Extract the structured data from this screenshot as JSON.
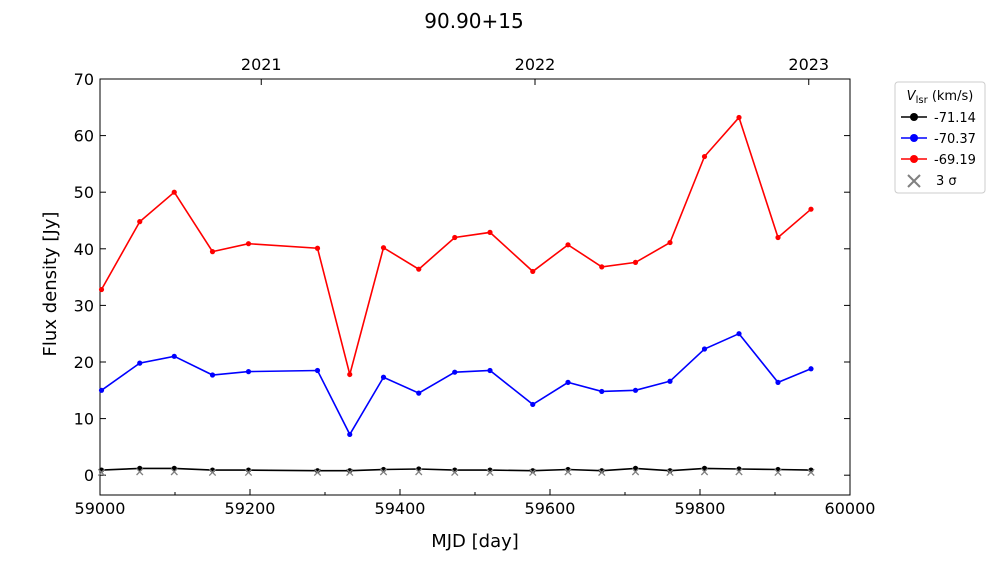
{
  "chart_data": {
    "type": "line",
    "title": "90.90+15",
    "xlabel": "MJD [day]",
    "ylabel": "Flux density [Jy]",
    "xlim": [
      59000,
      60000
    ],
    "ylim": [
      -3.5,
      70
    ],
    "xticks": [
      59000,
      59200,
      59400,
      59600,
      59800,
      60000
    ],
    "yticks": [
      0,
      10,
      20,
      30,
      40,
      50,
      60,
      70
    ],
    "top_axis": {
      "labels": [
        "2021",
        "2022",
        "2023"
      ],
      "positions_mjd": [
        59215,
        59580,
        59945
      ]
    },
    "grid": false,
    "legend": {
      "placement": "outside-top-right",
      "title_main": "V",
      "title_sub": "lsr",
      "title_unit": " (km/s)",
      "sigma_label": "3 σ"
    },
    "x": [
      59002,
      59053,
      59099,
      59150,
      59198,
      59290,
      59333,
      59378,
      59425,
      59473,
      59520,
      59577,
      59624,
      59669,
      59714,
      59760,
      59806,
      59852,
      59904,
      59948
    ],
    "series": [
      {
        "name": "-71.14",
        "color": "#000000",
        "values": [
          0.9,
          1.2,
          1.2,
          0.9,
          0.9,
          0.8,
          0.8,
          1.0,
          1.1,
          0.9,
          0.9,
          0.8,
          1.0,
          0.8,
          1.2,
          0.8,
          1.2,
          1.1,
          1.0,
          0.9
        ]
      },
      {
        "name": "-70.37",
        "color": "#0000ff",
        "values": [
          15.0,
          19.8,
          21.0,
          17.7,
          18.3,
          18.5,
          7.2,
          17.3,
          14.5,
          18.2,
          18.5,
          12.5,
          16.4,
          14.8,
          15.0,
          16.6,
          22.3,
          25.0,
          16.4,
          18.8
        ]
      },
      {
        "name": "-69.19",
        "color": "#ff0000",
        "values": [
          32.8,
          44.8,
          50.0,
          39.5,
          40.9,
          40.1,
          17.8,
          40.2,
          36.4,
          42.0,
          42.9,
          36.0,
          40.7,
          36.8,
          37.6,
          41.1,
          56.3,
          63.2,
          42.0,
          47.0
        ]
      }
    ],
    "sigma3": [
      0.5,
      0.6,
      0.6,
      0.5,
      0.5,
      0.5,
      0.5,
      0.6,
      0.6,
      0.5,
      0.5,
      0.5,
      0.6,
      0.5,
      0.6,
      0.5,
      0.6,
      0.6,
      0.5,
      0.5
    ],
    "colors": {
      "sigma_marker": "#808080"
    }
  }
}
